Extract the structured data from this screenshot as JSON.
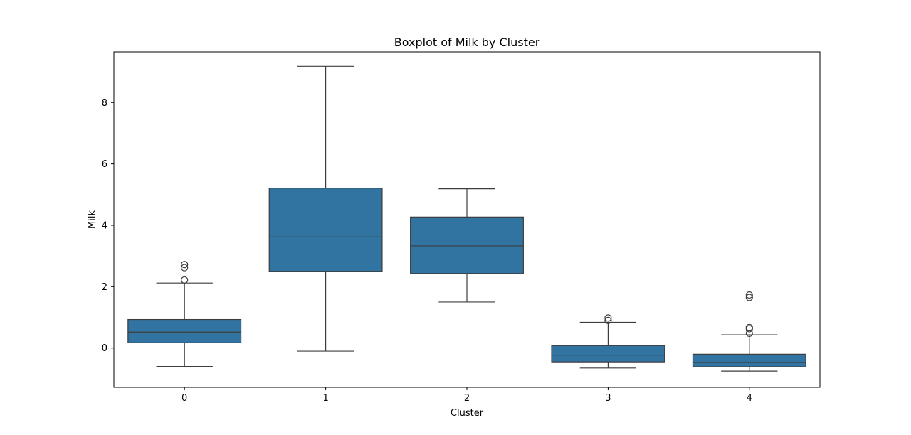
{
  "chart_data": {
    "type": "box",
    "title": "Boxplot of Milk by Cluster",
    "xlabel": "Cluster",
    "ylabel": "Milk",
    "categories": [
      "0",
      "1",
      "2",
      "3",
      "4"
    ],
    "yticks": [
      0,
      2,
      4,
      6,
      8
    ],
    "ylim": [
      -1.28,
      9.65
    ],
    "grid": false,
    "box_color": "#3274a1",
    "line_color": "#3d3d3d",
    "boxes": [
      {
        "category": "0",
        "whisker_low": -0.6,
        "q1": 0.17,
        "median": 0.52,
        "q3": 0.93,
        "whisker_high": 2.12,
        "outliers": [
          2.22,
          2.62,
          2.72
        ]
      },
      {
        "category": "1",
        "whisker_low": -0.1,
        "q1": 2.5,
        "median": 3.62,
        "q3": 5.21,
        "whisker_high": 9.18,
        "outliers": []
      },
      {
        "category": "2",
        "whisker_low": 1.5,
        "q1": 2.43,
        "median": 3.33,
        "q3": 4.27,
        "whisker_high": 5.19,
        "outliers": []
      },
      {
        "category": "3",
        "whisker_low": -0.65,
        "q1": -0.45,
        "median": -0.23,
        "q3": 0.08,
        "whisker_high": 0.84,
        "outliers": [
          0.9,
          0.98
        ]
      },
      {
        "category": "4",
        "whisker_low": -0.75,
        "q1": -0.61,
        "median": -0.47,
        "q3": -0.2,
        "whisker_high": 0.43,
        "outliers": [
          0.48,
          0.63,
          0.67,
          1.65,
          1.73
        ]
      }
    ]
  }
}
